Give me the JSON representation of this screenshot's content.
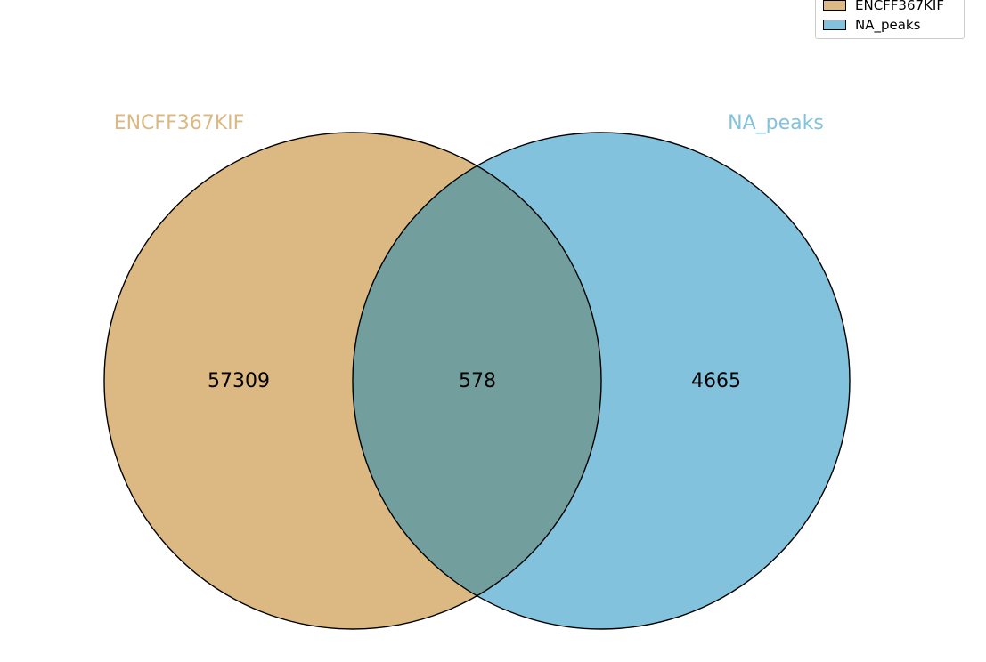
{
  "sets": [
    {
      "name": "ENCFF367KIF",
      "color": "#d4a45d"
    },
    {
      "name": "NA_peaks",
      "color": "#5aaed3"
    }
  ],
  "regions": {
    "only_a": "57309",
    "intersection": "578",
    "only_b": "4665"
  },
  "overlap_color": "#729e9e",
  "legend": {
    "items": [
      {
        "label": "ENCFF367KIF",
        "color": "#dcb882"
      },
      {
        "label": "NA_peaks",
        "color": "#82c2dc"
      }
    ]
  }
}
